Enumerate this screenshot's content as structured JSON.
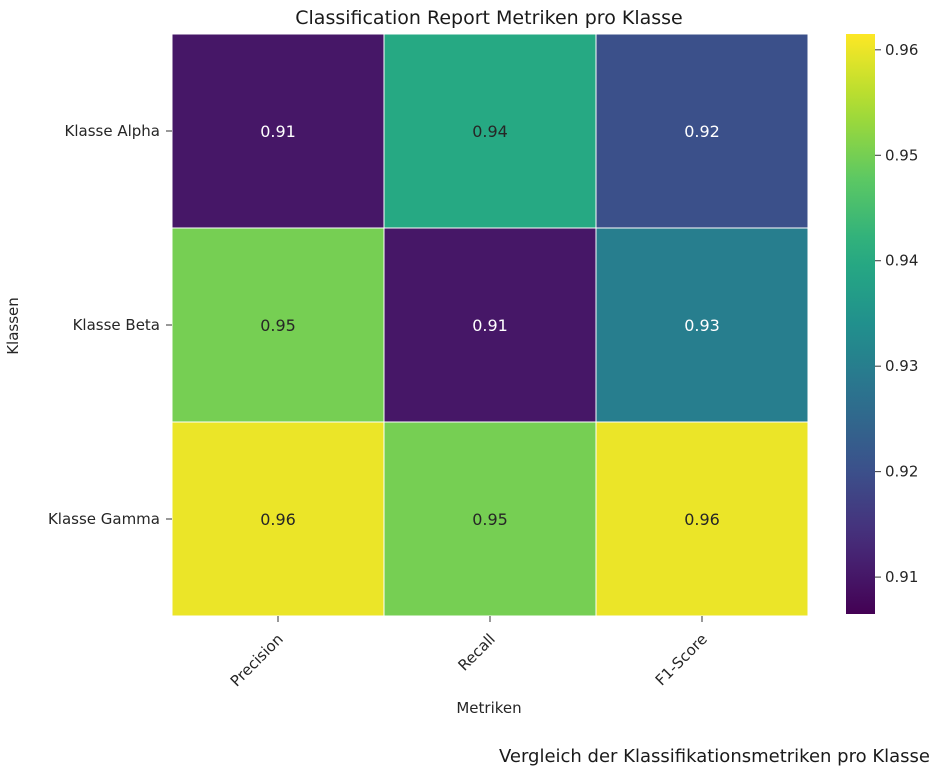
{
  "chart_data": {
    "type": "heatmap",
    "title": "Classification Report Metriken pro Klasse",
    "xlabel": "Metriken",
    "ylabel": "Klassen",
    "columns": [
      "Precision",
      "Recall",
      "F1-Score"
    ],
    "rows": [
      "Klasse Alpha",
      "Klasse Beta",
      "Klasse Gamma"
    ],
    "values": [
      [
        0.91,
        0.94,
        0.92
      ],
      [
        0.95,
        0.91,
        0.93
      ],
      [
        0.96,
        0.95,
        0.96
      ]
    ],
    "value_labels": [
      [
        "0.91",
        "0.94",
        "0.92"
      ],
      [
        "0.95",
        "0.91",
        "0.93"
      ],
      [
        "0.96",
        "0.95",
        "0.96"
      ]
    ],
    "colormap": "viridis",
    "color_range": [
      0.9065,
      0.9615
    ],
    "colorbar_ticks": [
      0.91,
      0.92,
      0.93,
      0.94,
      0.95,
      0.96
    ],
    "colorbar_tick_labels": [
      "0.91",
      "0.92",
      "0.93",
      "0.94",
      "0.95",
      "0.96"
    ],
    "x_tick_rotation": 45,
    "grid": false
  },
  "caption": "Vergleich der Klassifikationsmetriken pro Klasse"
}
